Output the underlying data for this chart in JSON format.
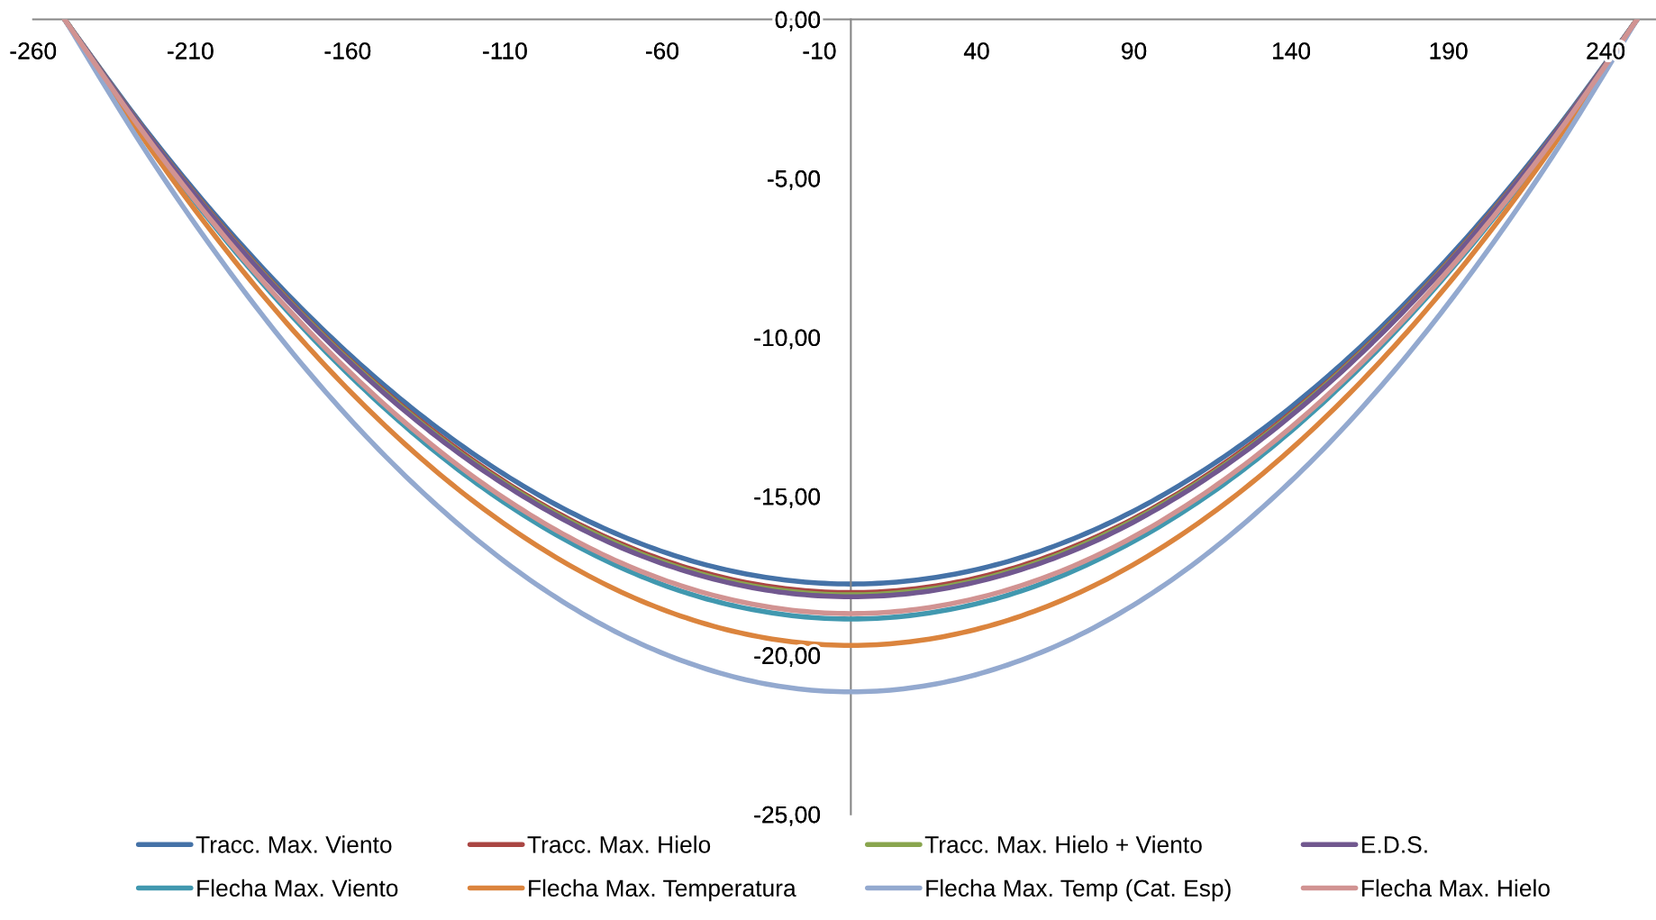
{
  "chart_data": {
    "type": "line",
    "x": [
      -250,
      -225,
      -200,
      -175,
      -150,
      -125,
      -100,
      -75,
      -50,
      -25,
      0,
      25,
      50,
      75,
      100,
      125,
      150,
      175,
      200,
      225,
      250
    ],
    "xlim": [
      -260,
      256
    ],
    "xticks": [
      -260,
      -210,
      -160,
      -110,
      -60,
      -10,
      40,
      90,
      140,
      190,
      240
    ],
    "ylim": [
      -25,
      0
    ],
    "yticks": [
      {
        "value": 0,
        "label": "0,00"
      },
      {
        "value": -5,
        "label": "-5,00"
      },
      {
        "value": -10,
        "label": "-10,00"
      },
      {
        "value": -15,
        "label": "-15,00"
      },
      {
        "value": -20,
        "label": "-20,00"
      },
      {
        "value": -25,
        "label": "-25,00"
      }
    ],
    "grid": false,
    "legend": "bottom",
    "marker": "none",
    "line_style": "solid",
    "series": [
      {
        "name": "Tracc. Max. Viento",
        "color": "#4572a7",
        "values": [
          0,
          -3.37,
          -6.39,
          -9.06,
          -11.37,
          -13.32,
          -14.92,
          -16.16,
          -17.05,
          -17.58,
          -17.76,
          -17.58,
          -17.05,
          -16.16,
          -14.92,
          -13.32,
          -11.37,
          -9.06,
          -6.39,
          -3.37,
          0
        ]
      },
      {
        "name": "Tracc. Max. Hielo",
        "color": "#aa4643",
        "values": [
          0,
          -3.43,
          -6.49,
          -9.2,
          -11.54,
          -13.52,
          -15.15,
          -16.41,
          -17.31,
          -17.85,
          -18.03,
          -17.85,
          -17.31,
          -16.41,
          -15.15,
          -13.52,
          -11.54,
          -9.2,
          -6.49,
          -3.43,
          0
        ]
      },
      {
        "name": "Tracc. Max. Hielo + Viento",
        "color": "#89a54e",
        "values": [
          0,
          -3.44,
          -6.52,
          -9.23,
          -11.58,
          -13.58,
          -15.2,
          -16.47,
          -17.38,
          -17.92,
          -18.1,
          -17.92,
          -17.38,
          -16.47,
          -15.2,
          -13.58,
          -11.58,
          -9.23,
          -6.52,
          -3.44,
          0
        ]
      },
      {
        "name": "E.D.S.",
        "color": "#71588f",
        "values": [
          0,
          -3.45,
          -6.54,
          -9.26,
          -11.62,
          -13.62,
          -15.25,
          -16.53,
          -17.43,
          -17.98,
          -18.16,
          -17.98,
          -17.43,
          -16.53,
          -15.25,
          -13.62,
          -11.62,
          -9.26,
          -6.54,
          -3.45,
          0
        ]
      },
      {
        "name": "Flecha Max. Viento",
        "color": "#4198af",
        "values": [
          0,
          -3.58,
          -6.79,
          -9.62,
          -12.07,
          -14.15,
          -15.84,
          -17.16,
          -18.11,
          -18.67,
          -18.86,
          -18.67,
          -18.11,
          -17.16,
          -15.84,
          -14.15,
          -12.07,
          -9.62,
          -6.79,
          -3.58,
          0
        ]
      },
      {
        "name": "Flecha Max. Temperatura",
        "color": "#db843d",
        "values": [
          0,
          -3.74,
          -7.09,
          -10.04,
          -12.6,
          -14.77,
          -16.54,
          -17.92,
          -18.9,
          -19.49,
          -19.69,
          -19.49,
          -18.9,
          -17.92,
          -16.54,
          -14.77,
          -12.6,
          -10.04,
          -7.09,
          -3.74,
          0
        ]
      },
      {
        "name": "Flecha Max. Temp (Cat. Esp)",
        "color": "#93a9cf",
        "values": [
          0,
          -4.02,
          -7.61,
          -10.79,
          -13.54,
          -15.86,
          -17.77,
          -19.25,
          -20.3,
          -20.94,
          -21.15,
          -20.94,
          -20.3,
          -19.25,
          -17.77,
          -15.86,
          -13.54,
          -10.79,
          -7.61,
          -4.02,
          0
        ]
      },
      {
        "name": "Flecha Max. Hielo",
        "color": "#d19392",
        "values": [
          0,
          -3.55,
          -6.73,
          -9.53,
          -11.96,
          -14.02,
          -15.7,
          -17.01,
          -17.94,
          -18.5,
          -18.69,
          -18.5,
          -17.94,
          -17.01,
          -15.7,
          -14.02,
          -11.96,
          -9.53,
          -6.73,
          -3.55,
          0
        ]
      }
    ]
  }
}
